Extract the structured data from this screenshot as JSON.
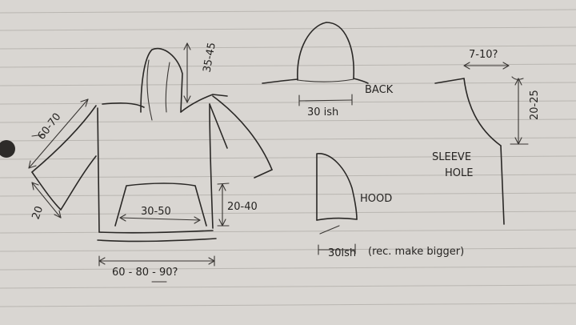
{
  "paper": {
    "background": "#d9d6d2",
    "ink": "#2a2826",
    "rule_color": "#b9b6b1"
  },
  "labels": {
    "hood_height": "35-45",
    "sleeve_length": "60-70",
    "cuff_width": "20",
    "pocket_width": "30-50",
    "pocket_height": "20-40",
    "body_width": "60 - 80 - 90?",
    "back_label": "BACK",
    "back_width": "30 ish",
    "hood_label": "HOOD",
    "hood_width": "30ish",
    "hood_note": "(rec. make bigger)",
    "armhole_width": "7-10?",
    "armhole_depth": "20-25",
    "sleeve_hole_line1": "SLEEVE",
    "sleeve_hole_line2": "HOLE"
  }
}
